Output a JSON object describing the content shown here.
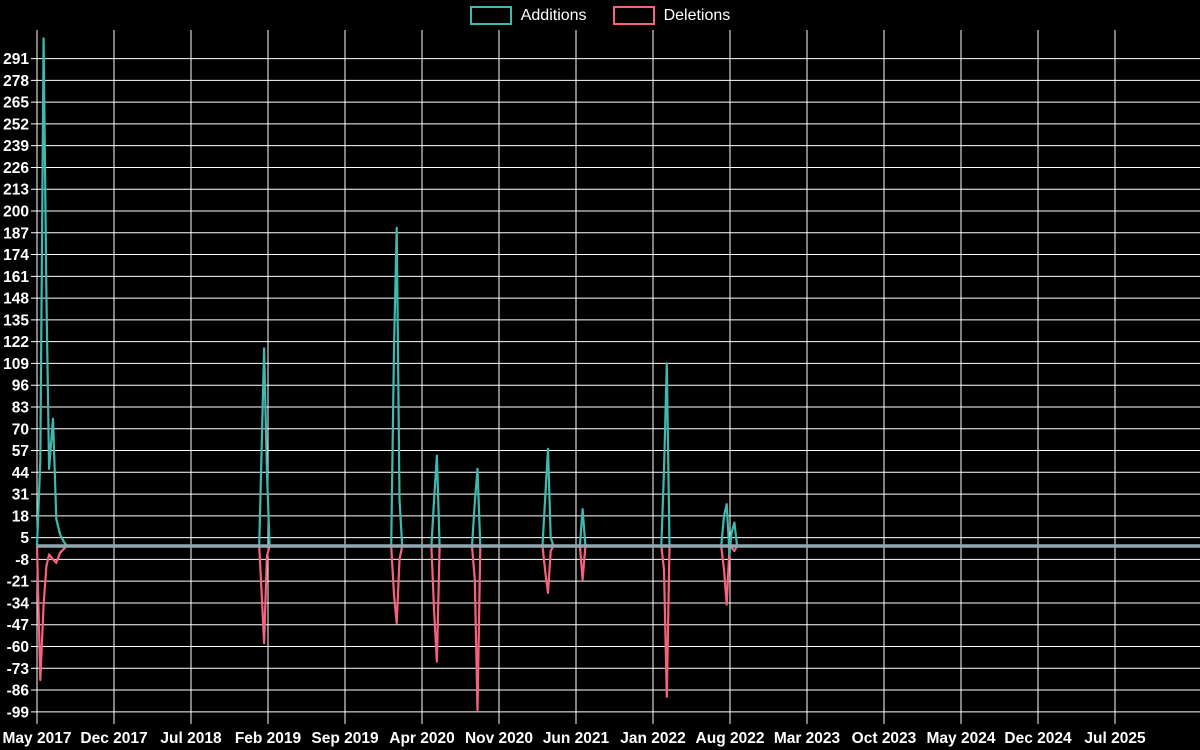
{
  "legend": {
    "additions_label": "Additions",
    "deletions_label": "Deletions"
  },
  "chart_data": {
    "type": "line",
    "title": "",
    "legend_position": "top-center",
    "background": "#000000",
    "grid_color": "#ffffff",
    "text_color": "#ffffff",
    "zero_line_color": "#8fa8b2",
    "x_unit": "months since May 2017 (weekly git additions/deletions)",
    "x_tick_labels": [
      "May 2017",
      "Dec 2017",
      "Jul 2018",
      "Feb 2019",
      "Sep 2019",
      "Apr 2020",
      "Nov 2020",
      "Jun 2021",
      "Jan 2022",
      "Aug 2022",
      "Mar 2023",
      "Oct 2023",
      "May 2024",
      "Dec 2024",
      "Jul 2025"
    ],
    "x_tick_positions_months": [
      0,
      7,
      14,
      21,
      28,
      35,
      42,
      49,
      56,
      63,
      70,
      77,
      84,
      91,
      98
    ],
    "xlim_months": [
      0,
      105.7
    ],
    "y_tick_values": [
      291,
      278,
      265,
      252,
      239,
      226,
      213,
      200,
      187,
      174,
      161,
      148,
      135,
      122,
      109,
      96,
      83,
      70,
      57,
      44,
      31,
      18,
      5,
      -8,
      -21,
      -34,
      -47,
      -60,
      -73,
      -86,
      -99
    ],
    "ylim": [
      -99,
      303
    ],
    "grid": true,
    "series": [
      {
        "name": "Additions",
        "color": "#3db9af",
        "points": [
          [
            0.0,
            0
          ],
          [
            0.3,
            51
          ],
          [
            0.6,
            303
          ],
          [
            0.85,
            150
          ],
          [
            1.1,
            46
          ],
          [
            1.45,
            76
          ],
          [
            1.75,
            16
          ],
          [
            2.1,
            7
          ],
          [
            2.4,
            3
          ],
          [
            2.7,
            0
          ],
          [
            20.2,
            0
          ],
          [
            20.4,
            52
          ],
          [
            20.65,
            118
          ],
          [
            20.9,
            45
          ],
          [
            21.15,
            0
          ],
          [
            32.2,
            0
          ],
          [
            32.45,
            118
          ],
          [
            32.7,
            190
          ],
          [
            32.95,
            28
          ],
          [
            33.2,
            0
          ],
          [
            35.85,
            0
          ],
          [
            36.1,
            28
          ],
          [
            36.35,
            54
          ],
          [
            36.6,
            0
          ],
          [
            39.55,
            0
          ],
          [
            39.8,
            26
          ],
          [
            40.05,
            46
          ],
          [
            40.3,
            0
          ],
          [
            45.95,
            0
          ],
          [
            46.2,
            29
          ],
          [
            46.45,
            58
          ],
          [
            46.7,
            5
          ],
          [
            46.95,
            0
          ],
          [
            49.35,
            0
          ],
          [
            49.6,
            22
          ],
          [
            49.85,
            0
          ],
          [
            56.75,
            0
          ],
          [
            57.0,
            45
          ],
          [
            57.25,
            109
          ],
          [
            57.5,
            0
          ],
          [
            62.2,
            0
          ],
          [
            62.45,
            18
          ],
          [
            62.7,
            25
          ],
          [
            62.95,
            -5
          ],
          [
            63.15,
            8
          ],
          [
            63.4,
            14
          ],
          [
            63.65,
            0
          ],
          [
            105.7,
            0
          ]
        ]
      },
      {
        "name": "Deletions",
        "color": "#f8617e",
        "points": [
          [
            0.0,
            0
          ],
          [
            0.3,
            -80
          ],
          [
            0.6,
            -35
          ],
          [
            0.85,
            -12
          ],
          [
            1.1,
            -5
          ],
          [
            1.45,
            -8
          ],
          [
            1.75,
            -10
          ],
          [
            2.1,
            -4
          ],
          [
            2.4,
            -2
          ],
          [
            2.7,
            0
          ],
          [
            20.2,
            0
          ],
          [
            20.4,
            -25
          ],
          [
            20.65,
            -58
          ],
          [
            20.9,
            -6
          ],
          [
            21.15,
            0
          ],
          [
            32.2,
            0
          ],
          [
            32.45,
            -29
          ],
          [
            32.7,
            -46
          ],
          [
            32.95,
            -8
          ],
          [
            33.2,
            0
          ],
          [
            35.85,
            0
          ],
          [
            36.1,
            -39
          ],
          [
            36.35,
            -69
          ],
          [
            36.6,
            0
          ],
          [
            39.55,
            0
          ],
          [
            39.8,
            -20
          ],
          [
            40.05,
            -98
          ],
          [
            40.3,
            0
          ],
          [
            45.95,
            0
          ],
          [
            46.2,
            -15
          ],
          [
            46.45,
            -28
          ],
          [
            46.7,
            -3
          ],
          [
            46.95,
            0
          ],
          [
            49.35,
            0
          ],
          [
            49.6,
            -20
          ],
          [
            49.85,
            0
          ],
          [
            56.75,
            0
          ],
          [
            57.0,
            -14
          ],
          [
            57.25,
            -90
          ],
          [
            57.5,
            0
          ],
          [
            62.2,
            0
          ],
          [
            62.45,
            -14
          ],
          [
            62.7,
            -35
          ],
          [
            62.95,
            0
          ],
          [
            63.15,
            -1
          ],
          [
            63.4,
            -3
          ],
          [
            63.65,
            0
          ],
          [
            105.7,
            0
          ]
        ]
      }
    ]
  }
}
